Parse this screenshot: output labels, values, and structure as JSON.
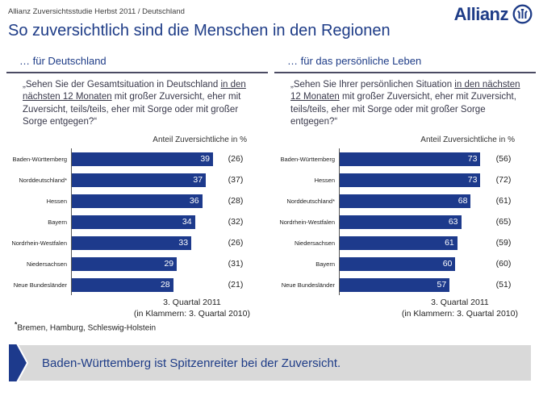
{
  "header": {
    "breadcrumb": "Allianz Zuversichtsstudie Herbst 2011 / Deutschland",
    "logo_text": "Allianz",
    "title": "So zuversichtlich sind die Menschen in den Regionen"
  },
  "colors": {
    "navy": "#1e3c87",
    "bar_blue": "#1d3a8c",
    "banner_bg": "#d9d9d9",
    "text_dark": "#333333",
    "bar_value_text": "#ffffff"
  },
  "panels": [
    {
      "subtitle": "… für Deutschland",
      "question_pre": "„Sehen Sie der Gesamtsituation in Deutschland ",
      "question_underline": "in den nächsten 12 Monaten",
      "question_post": " mit großer Zuversicht, eher mit Zuversicht, teils/teils, eher mit Sorge oder mit großer Sorge entgegen?“",
      "axis_label": "Anteil Zuversichtliche in %",
      "caption_line1": "3. Quartal 2011",
      "caption_line2": "(in Klammern: 3. Quartal 2010)"
    },
    {
      "subtitle": "… für das persönliche Leben",
      "question_pre": "„Sehen Sie Ihrer persönlichen Situation ",
      "question_underline": "in den nächsten 12 Monaten",
      "question_post": " mit großer Zuversicht, eher mit Zuversicht, teils/teils, eher mit Sorge oder mit großer Sorge entgegen?“",
      "axis_label": "Anteil Zuversichtliche in %",
      "caption_line1": "3. Quartal 2011",
      "caption_line2": "(in Klammern: 3. Quartal 2010)"
    }
  ],
  "chart_data": [
    {
      "type": "bar",
      "orientation": "horizontal",
      "title": "… für Deutschland",
      "value_axis_label": "Anteil Zuversichtliche in %",
      "categories": [
        "Baden-Württemberg",
        "Norddeutschland*",
        "Hessen",
        "Bayern",
        "Nordrhein-Westfalen",
        "Niedersachsen",
        "Neue Bundesländer"
      ],
      "series": [
        {
          "name": "3. Quartal 2011",
          "values": [
            39,
            37,
            36,
            34,
            33,
            29,
            28
          ]
        },
        {
          "name": "3. Quartal 2010 (in Klammern)",
          "values": [
            26,
            37,
            28,
            32,
            26,
            31,
            21
          ]
        }
      ],
      "axis_max": 41,
      "grid": false,
      "bar_color": "#1d3a8c"
    },
    {
      "type": "bar",
      "orientation": "horizontal",
      "title": "… für das persönliche Leben",
      "value_axis_label": "Anteil Zuversichtliche in %",
      "categories": [
        "Baden-Württemberg",
        "Hessen",
        "Norddeutschland*",
        "Nordrhein-Westfalen",
        "Niedersachsen",
        "Bayern",
        "Neue Bundesländer"
      ],
      "series": [
        {
          "name": "3. Quartal 2011",
          "values": [
            73,
            73,
            68,
            63,
            61,
            60,
            57
          ]
        },
        {
          "name": "3. Quartal 2010 (in Klammern)",
          "values": [
            56,
            72,
            61,
            65,
            59,
            60,
            51
          ]
        }
      ],
      "axis_max": 77,
      "grid": false,
      "bar_color": "#1d3a8c"
    }
  ],
  "footnote": {
    "marker": "*",
    "text": "Bremen, Hamburg, Schleswig-Holstein"
  },
  "banner": {
    "text": "Baden-Württemberg ist Spitzenreiter bei der Zuversicht."
  }
}
